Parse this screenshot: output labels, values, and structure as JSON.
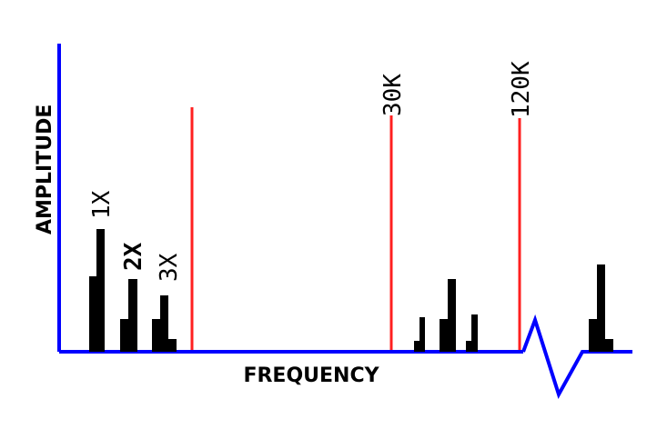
{
  "diagram": {
    "axes": {
      "y_title": "AMPLITUDE",
      "x_title": "FREQUENCY",
      "axis_color": "#0000ff"
    },
    "harmonic_labels": [
      "1X",
      "2X",
      "3X"
    ],
    "marker_labels": [
      "30K",
      "120K"
    ],
    "marker_color": "#ff2020",
    "bar_color": "#000000",
    "axis_break": "zigzag"
  }
}
